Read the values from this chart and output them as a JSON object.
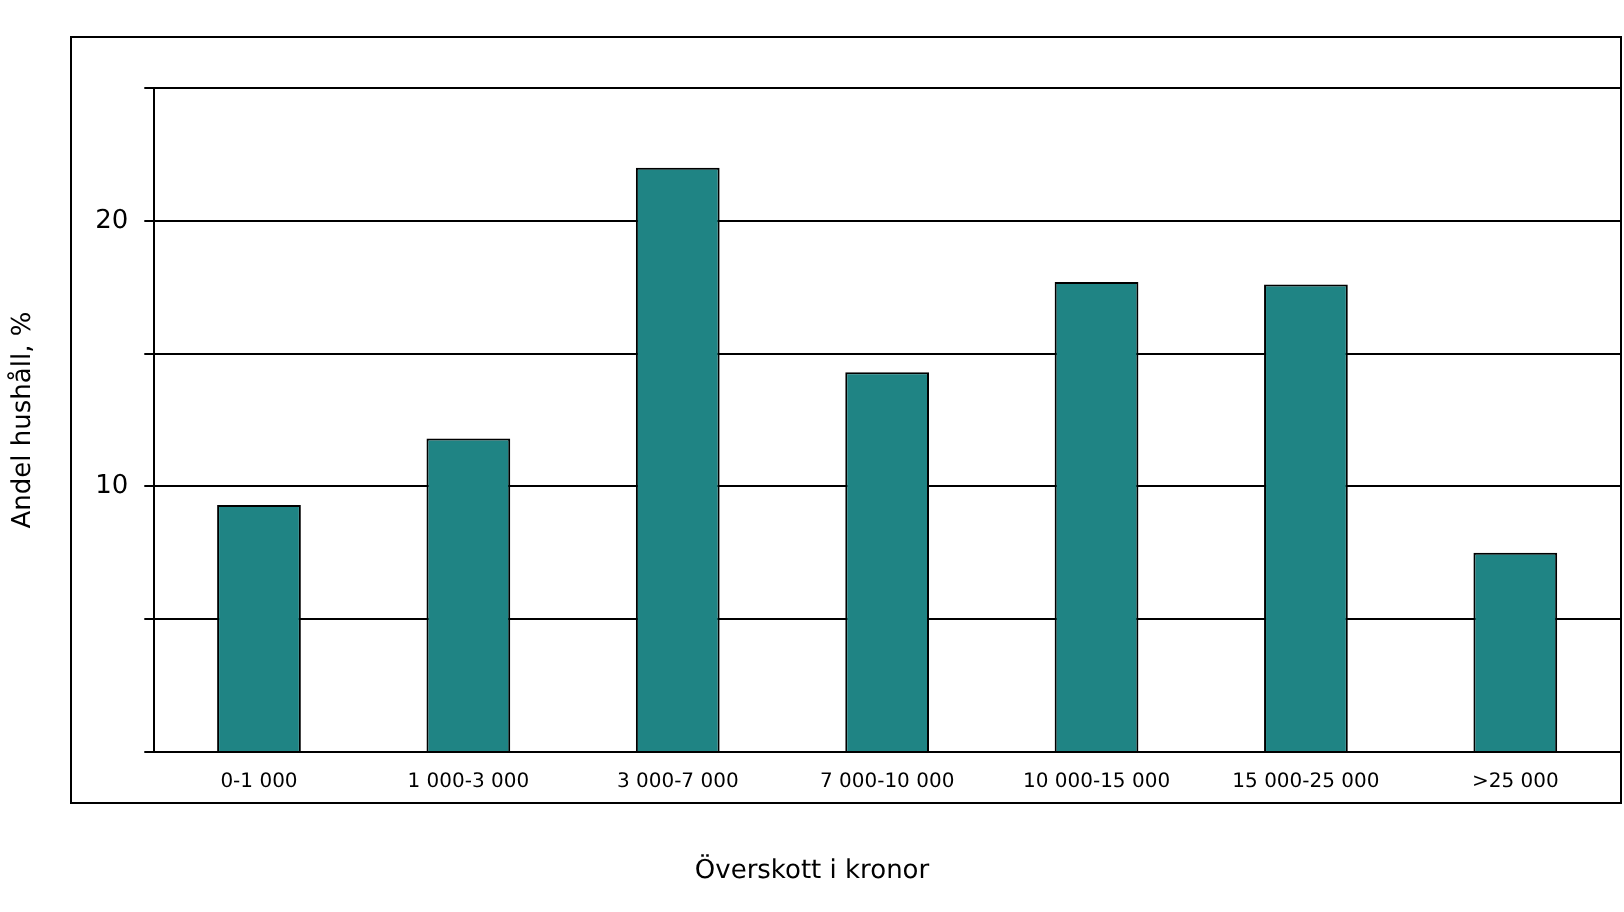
{
  "chart_data": {
    "type": "bar",
    "xlabel": "Överskott i kronor",
    "ylabel": "Andel hushåll, %",
    "categories": [
      "0-1 000",
      "1 000-3 000",
      "3 000-7 000",
      "7 000-10 000",
      "10 000-15 000",
      "15 000-25 000",
      ">25 000"
    ],
    "values": [
      9.3,
      11.8,
      22.0,
      14.3,
      17.7,
      17.6,
      7.5
    ],
    "color": "#1f8484",
    "ylim": [
      0,
      25
    ],
    "yticks": [
      {
        "value": 0,
        "label": null
      },
      {
        "value": 5,
        "label": null
      },
      10,
      {
        "value": 15,
        "label": null
      },
      20,
      {
        "value": 25,
        "label": null
      }
    ],
    "grid": "y",
    "legend": false
  }
}
